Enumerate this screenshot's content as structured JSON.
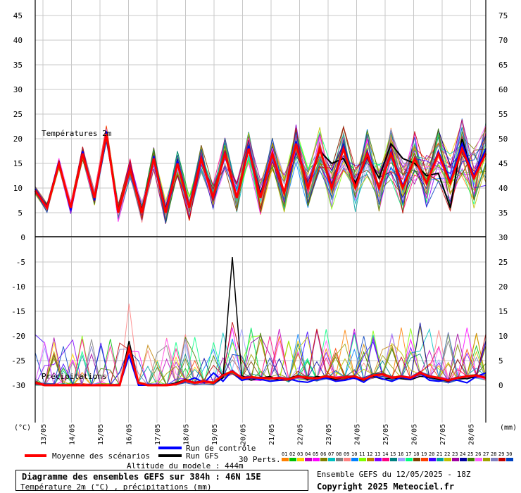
{
  "chart_data": {
    "type": "line",
    "panels": {
      "temperature": {
        "label": "Températures 2m",
        "left_ticks": [
          45,
          40,
          35,
          30,
          25,
          20,
          15,
          10,
          5
        ],
        "right_ticks": [
          75,
          70,
          65,
          60,
          55,
          50,
          45,
          40,
          35
        ]
      },
      "precipitation": {
        "label": "Précipitations",
        "left_ticks": [
          0,
          -5,
          -10,
          -15,
          -20,
          -25,
          -30
        ],
        "right_ticks": [
          30,
          25,
          20,
          15,
          10,
          5,
          0
        ]
      }
    },
    "x_labels": [
      "13/05",
      "14/05",
      "15/05",
      "16/05",
      "17/05",
      "18/05",
      "19/05",
      "20/05",
      "21/05",
      "22/05",
      "23/05",
      "24/05",
      "25/05",
      "26/05",
      "27/05",
      "28/05"
    ],
    "left_unit": "(°C)",
    "right_unit": "(mm)",
    "mean_temperature": [
      9.5,
      6,
      15,
      6,
      17,
      8,
      21,
      5,
      14,
      5,
      16,
      5,
      15,
      6,
      16,
      8,
      17,
      8,
      18,
      8,
      17,
      9,
      19,
      10,
      18,
      10,
      18,
      10,
      17,
      10,
      17,
      10,
      16,
      11,
      17,
      11,
      18,
      12,
      17
    ],
    "control_temperature": [
      9.8,
      6.2,
      15.5,
      5.5,
      17.5,
      7.5,
      21.5,
      5,
      14.5,
      5.2,
      16.5,
      5.5,
      15.5,
      6,
      16.5,
      7.5,
      17.5,
      8,
      18.5,
      8.5,
      17,
      9,
      19.5,
      10,
      18,
      10.5,
      18.5,
      10,
      17.5,
      10,
      17.5,
      10.5,
      16,
      11,
      17.5,
      11.5,
      19,
      12.5,
      18
    ],
    "gfs_temperature": [
      9.8,
      6.3,
      15.4,
      5.8,
      17.2,
      7.8,
      21,
      5.4,
      14.2,
      5.5,
      16.2,
      5.7,
      15.2,
      6.2,
      16.2,
      7.8,
      17.2,
      8.2,
      18.2,
      8.8,
      16.8,
      9.2,
      19.2,
      10.2,
      17.5,
      15,
      16,
      11,
      16.5,
      12,
      19,
      16,
      15,
      12.5,
      13,
      6,
      20,
      12,
      18
    ],
    "mean_precipitation": [
      0.5,
      0,
      0,
      0,
      0,
      0,
      0,
      0,
      0,
      0,
      7.5,
      0.5,
      0,
      0,
      0,
      0.2,
      1,
      0.5,
      0.8,
      0.5,
      2,
      2.8,
      1.5,
      1.6,
      1.5,
      1.4,
      1.5,
      1.2,
      1.8,
      1.5,
      1.4,
      1.8,
      1.5,
      1.6,
      1.8,
      1.2,
      2,
      2.2,
      1.5,
      1.8,
      1.5,
      2.5,
      1.8,
      1.5,
      1,
      1.5,
      1.8,
      2,
      1.5
    ],
    "control_precipitation": [
      0.3,
      0,
      0,
      0,
      0,
      0,
      0,
      0,
      0,
      0,
      6,
      0,
      0,
      0,
      0,
      0.3,
      0.8,
      1.5,
      0.5,
      2.5,
      0.8,
      3,
      1,
      1.5,
      1.2,
      0.8,
      1,
      1.3,
      0.8,
      0.6,
      1.2,
      1.5,
      0.8,
      1,
      1.5,
      0.6,
      2,
      1.3,
      0.8,
      1.6,
      1.2,
      2.4,
      1,
      0.8,
      1.2,
      1,
      0.5,
      1.8,
      2.5
    ],
    "gfs_precipitation": [
      0.5,
      0,
      0,
      0,
      0,
      0,
      0,
      0,
      0,
      0,
      9,
      0.5,
      0,
      0,
      0,
      0.5,
      1.2,
      0.5,
      0.8,
      0.4,
      1.5,
      26,
      2,
      1,
      1.5,
      1.8,
      1,
      1.4,
      2,
      1.2,
      1.8,
      1.5,
      1.2,
      1.6,
      1.4,
      1,
      1.8,
      1.2,
      1.5,
      1.3,
      1.1,
      1.8,
      1.6,
      1.2,
      0.8,
      1.4,
      1.3,
      1.8,
      1.6
    ]
  },
  "legend": {
    "mean": "Moyenne des scénarios",
    "control": "Run de contrôle",
    "gfs": "Run GFS",
    "perturbations_label": "30 Perts.",
    "perturbation_ids": [
      "01",
      "02",
      "03",
      "04",
      "05",
      "06",
      "07",
      "08",
      "09",
      "10",
      "11",
      "12",
      "13",
      "14",
      "15",
      "16",
      "17",
      "18",
      "19",
      "20",
      "21",
      "22",
      "23",
      "24",
      "25",
      "26",
      "27",
      "28",
      "29",
      "30"
    ],
    "colors": {
      "mean": "#ff0000",
      "control": "#0000ff",
      "gfs": "#000000",
      "perturbations": [
        "#ff8000",
        "#00c000",
        "#ffd000",
        "#c000c0",
        "#ff00ff",
        "#808000",
        "#00c0c0",
        "#808080",
        "#ff8080",
        "#0080ff",
        "#80ff00",
        "#c08000",
        "#8000ff",
        "#ff0080",
        "#008080",
        "#a0a0ff",
        "#00ff80",
        "#804000",
        "#ff4000",
        "#4000ff",
        "#00a0a0",
        "#c0c000",
        "#a000a0",
        "#0000a0",
        "#408000",
        "#ff60ff",
        "#a0a000",
        "#8080c0",
        "#c00000",
        "#0040c0"
      ]
    }
  },
  "footer": {
    "altitude": "Altitude du modele : 444m",
    "title": "Diagramme des ensembles GEFS sur 384h : 46N 15E",
    "subtitle": "Température 2m (°C) , précipitations (mm)",
    "ensemble_run": "Ensemble GEFS du 12/05/2025 - 18Z",
    "copyright": "Copyright 2025 Meteociel.fr"
  }
}
